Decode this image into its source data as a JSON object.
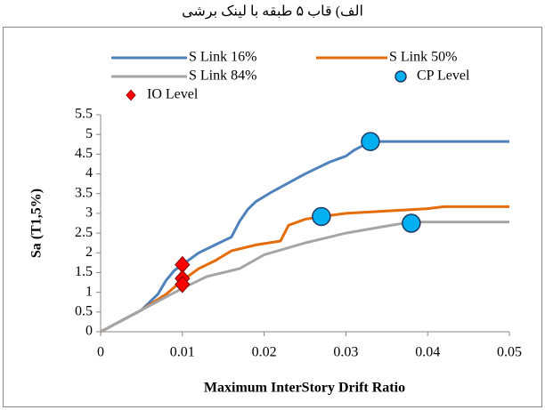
{
  "chart_data": {
    "type": "line",
    "title": "الف) قاب ۵ طبقه با لینک برشی",
    "xlabel": "Maximum InterStory Drift Ratio",
    "ylabel": "Sa (T1,5%)",
    "xlim": [
      0,
      0.05
    ],
    "xticks": [
      0,
      0.01,
      0.02,
      0.03,
      0.04,
      0.05
    ],
    "ylim": [
      0,
      5.5
    ],
    "yticks": [
      0,
      0.5,
      1,
      1.5,
      2,
      2.5,
      3,
      3.5,
      4,
      4.5,
      5,
      5.5
    ],
    "grid": false,
    "series": [
      {
        "name": "S Link 16%",
        "type": "line",
        "color": "#4f81bd",
        "x": [
          0,
          0.005,
          0.007,
          0.008,
          0.009,
          0.01,
          0.011,
          0.012,
          0.014,
          0.016,
          0.017,
          0.018,
          0.019,
          0.021,
          0.025,
          0.028,
          0.03,
          0.031,
          0.033,
          0.05
        ],
        "values": [
          0,
          0.55,
          0.95,
          1.3,
          1.55,
          1.7,
          1.85,
          2.0,
          2.2,
          2.4,
          2.8,
          3.1,
          3.3,
          3.55,
          4.0,
          4.3,
          4.45,
          4.6,
          4.82,
          4.82
        ]
      },
      {
        "name": "S Link 50%",
        "type": "line",
        "color": "#e46c0a",
        "x": [
          0,
          0.005,
          0.008,
          0.01,
          0.012,
          0.014,
          0.016,
          0.019,
          0.022,
          0.023,
          0.025,
          0.027,
          0.03,
          0.035,
          0.04,
          0.042,
          0.05
        ],
        "values": [
          0,
          0.55,
          0.95,
          1.3,
          1.6,
          1.8,
          2.05,
          2.2,
          2.3,
          2.7,
          2.85,
          2.92,
          3.0,
          3.06,
          3.12,
          3.17,
          3.17
        ]
      },
      {
        "name": "S Link 84%",
        "type": "line",
        "color": "#a5a5a5",
        "x": [
          0,
          0.005,
          0.01,
          0.013,
          0.017,
          0.02,
          0.025,
          0.03,
          0.035,
          0.038,
          0.05
        ],
        "values": [
          0,
          0.55,
          1.1,
          1.4,
          1.6,
          1.95,
          2.25,
          2.5,
          2.68,
          2.78,
          2.78
        ]
      },
      {
        "name": "CP Level",
        "type": "scatter",
        "marker": "circle",
        "color": "#00b0f0",
        "x": [
          0.033,
          0.027,
          0.038
        ],
        "values": [
          4.82,
          2.92,
          2.75
        ]
      },
      {
        "name": "IO Level",
        "type": "scatter",
        "marker": "diamond",
        "color": "#ff0000",
        "x": [
          0.01,
          0.01,
          0.01
        ],
        "values": [
          1.7,
          1.35,
          1.2
        ]
      }
    ]
  }
}
